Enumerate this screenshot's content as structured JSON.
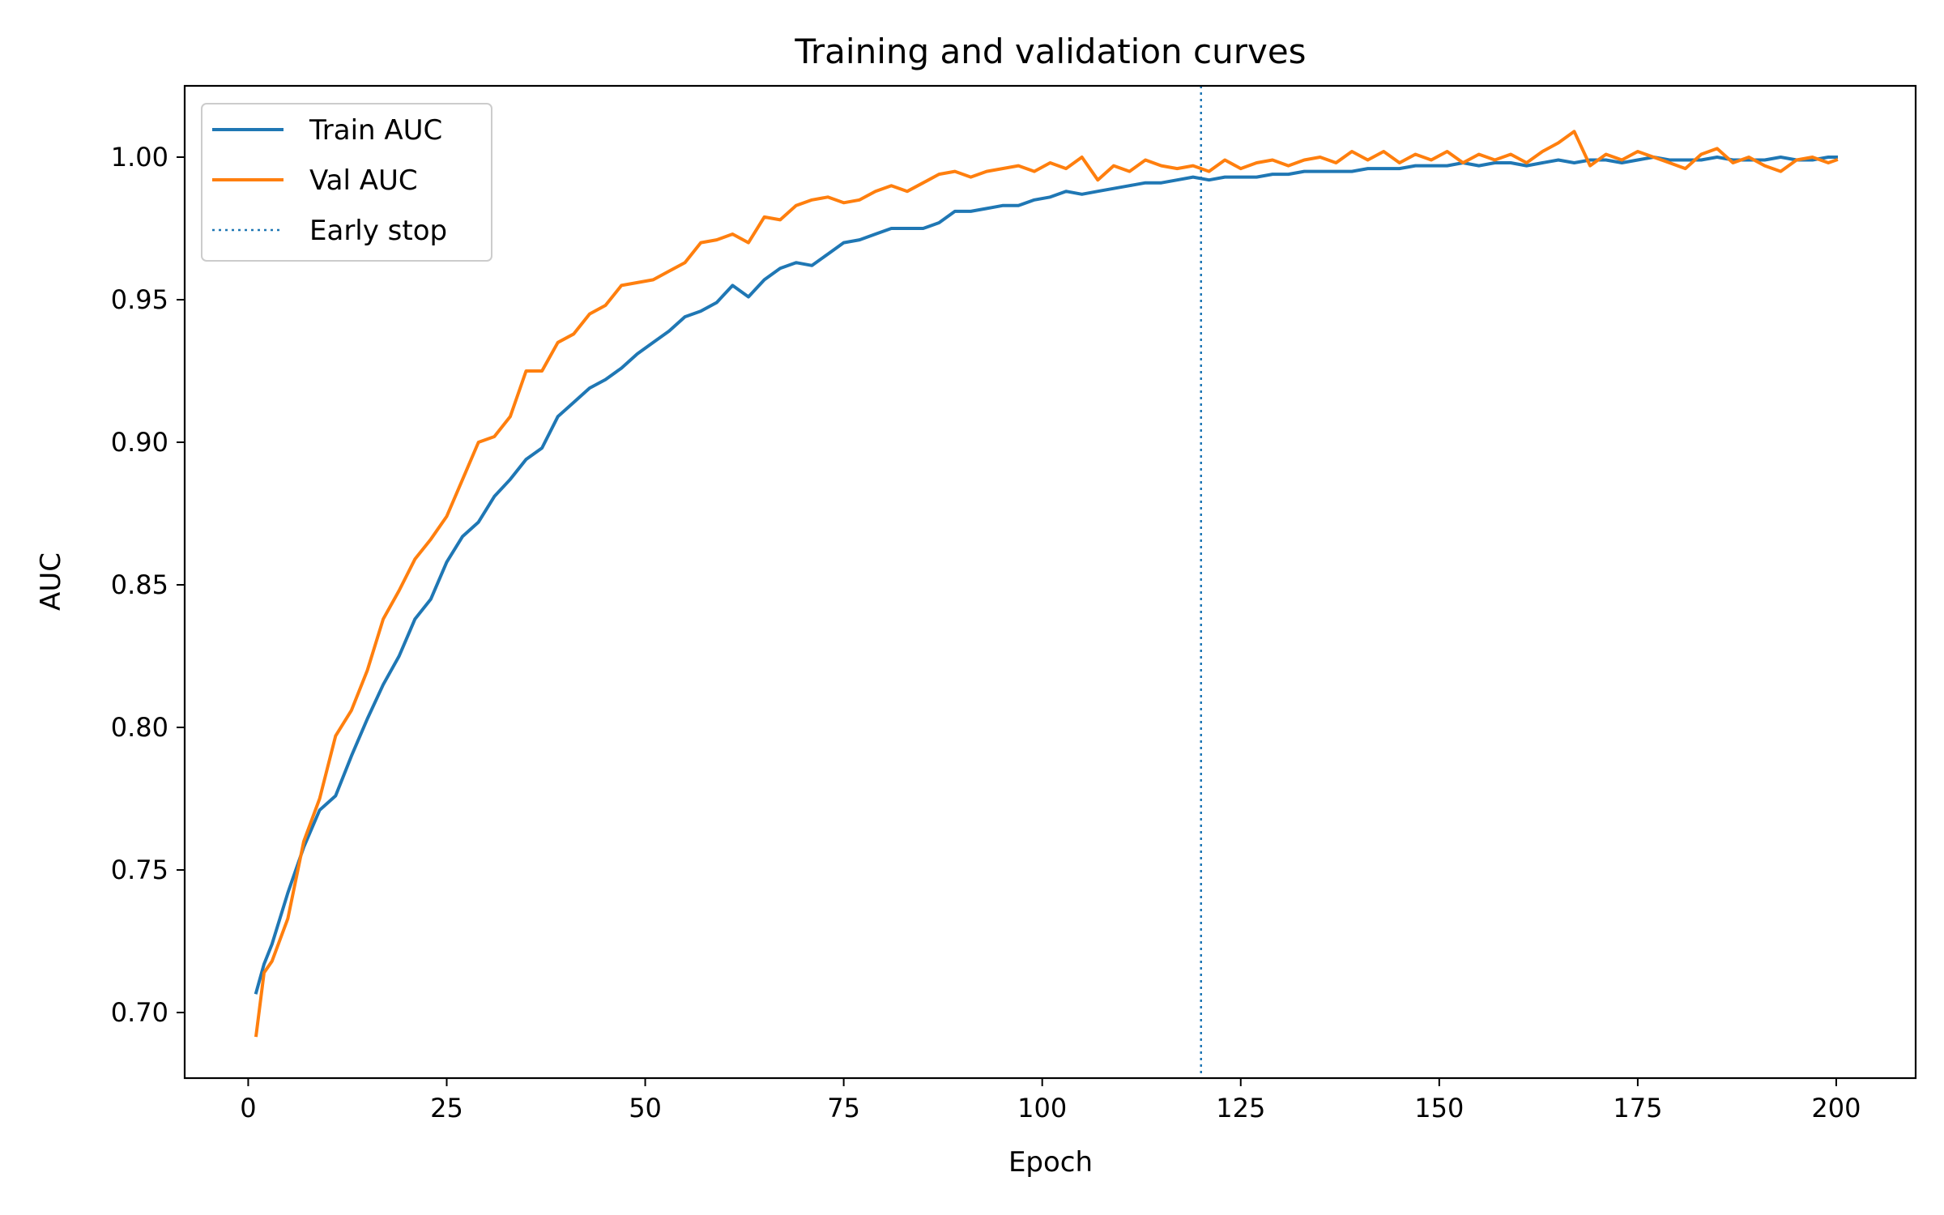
{
  "chart_data": {
    "type": "line",
    "title": "Training and validation curves",
    "xlabel": "Epoch",
    "ylabel": "AUC",
    "xlim": [
      -8,
      210
    ],
    "ylim": [
      0.677,
      1.025
    ],
    "xticks": [
      0,
      25,
      50,
      75,
      100,
      125,
      150,
      175,
      200
    ],
    "xtick_labels": [
      "0",
      "25",
      "50",
      "75",
      "100",
      "125",
      "150",
      "175",
      "200"
    ],
    "yticks": [
      0.7,
      0.75,
      0.8,
      0.85,
      0.9,
      0.95,
      1.0
    ],
    "ytick_labels": [
      "0.70",
      "0.75",
      "0.80",
      "0.85",
      "0.90",
      "0.95",
      "1.00"
    ],
    "grid": false,
    "legend_position": "top-left",
    "series": [
      {
        "name": "Train AUC",
        "color": "#1f77b4",
        "style": "solid",
        "points": [
          [
            1,
            0.707
          ],
          [
            2,
            0.717
          ],
          [
            3,
            0.724
          ],
          [
            5,
            0.742
          ],
          [
            7,
            0.758
          ],
          [
            9,
            0.771
          ],
          [
            11,
            0.776
          ],
          [
            13,
            0.79
          ],
          [
            15,
            0.803
          ],
          [
            17,
            0.815
          ],
          [
            19,
            0.825
          ],
          [
            21,
            0.838
          ],
          [
            23,
            0.845
          ],
          [
            25,
            0.858
          ],
          [
            27,
            0.867
          ],
          [
            29,
            0.872
          ],
          [
            31,
            0.881
          ],
          [
            33,
            0.887
          ],
          [
            35,
            0.894
          ],
          [
            37,
            0.898
          ],
          [
            39,
            0.909
          ],
          [
            41,
            0.914
          ],
          [
            43,
            0.919
          ],
          [
            45,
            0.922
          ],
          [
            47,
            0.926
          ],
          [
            49,
            0.931
          ],
          [
            51,
            0.935
          ],
          [
            53,
            0.939
          ],
          [
            55,
            0.944
          ],
          [
            57,
            0.946
          ],
          [
            59,
            0.949
          ],
          [
            61,
            0.955
          ],
          [
            63,
            0.951
          ],
          [
            65,
            0.957
          ],
          [
            67,
            0.961
          ],
          [
            69,
            0.963
          ],
          [
            71,
            0.962
          ],
          [
            73,
            0.966
          ],
          [
            75,
            0.97
          ],
          [
            77,
            0.971
          ],
          [
            79,
            0.973
          ],
          [
            81,
            0.975
          ],
          [
            83,
            0.975
          ],
          [
            85,
            0.975
          ],
          [
            87,
            0.977
          ],
          [
            89,
            0.981
          ],
          [
            91,
            0.981
          ],
          [
            93,
            0.982
          ],
          [
            95,
            0.983
          ],
          [
            97,
            0.983
          ],
          [
            99,
            0.985
          ],
          [
            101,
            0.986
          ],
          [
            103,
            0.988
          ],
          [
            105,
            0.987
          ],
          [
            107,
            0.988
          ],
          [
            109,
            0.989
          ],
          [
            111,
            0.99
          ],
          [
            113,
            0.991
          ],
          [
            115,
            0.991
          ],
          [
            117,
            0.992
          ],
          [
            119,
            0.993
          ],
          [
            121,
            0.992
          ],
          [
            123,
            0.993
          ],
          [
            125,
            0.993
          ],
          [
            127,
            0.993
          ],
          [
            129,
            0.994
          ],
          [
            131,
            0.994
          ],
          [
            133,
            0.995
          ],
          [
            135,
            0.995
          ],
          [
            137,
            0.995
          ],
          [
            139,
            0.995
          ],
          [
            141,
            0.996
          ],
          [
            143,
            0.996
          ],
          [
            145,
            0.996
          ],
          [
            147,
            0.997
          ],
          [
            149,
            0.997
          ],
          [
            151,
            0.997
          ],
          [
            153,
            0.998
          ],
          [
            155,
            0.997
          ],
          [
            157,
            0.998
          ],
          [
            159,
            0.998
          ],
          [
            161,
            0.997
          ],
          [
            163,
            0.998
          ],
          [
            165,
            0.999
          ],
          [
            167,
            0.998
          ],
          [
            169,
            0.999
          ],
          [
            171,
            0.999
          ],
          [
            173,
            0.998
          ],
          [
            175,
            0.999
          ],
          [
            177,
            1.0
          ],
          [
            179,
            0.999
          ],
          [
            181,
            0.999
          ],
          [
            183,
            0.999
          ],
          [
            185,
            1.0
          ],
          [
            187,
            0.999
          ],
          [
            189,
            0.999
          ],
          [
            191,
            0.999
          ],
          [
            193,
            1.0
          ],
          [
            195,
            0.999
          ],
          [
            197,
            0.999
          ],
          [
            199,
            1.0
          ],
          [
            200,
            1.0
          ]
        ]
      },
      {
        "name": "Val AUC",
        "color": "#ff7f0e",
        "style": "solid",
        "points": [
          [
            1,
            0.692
          ],
          [
            2,
            0.714
          ],
          [
            3,
            0.718
          ],
          [
            5,
            0.733
          ],
          [
            7,
            0.76
          ],
          [
            9,
            0.775
          ],
          [
            11,
            0.797
          ],
          [
            13,
            0.806
          ],
          [
            15,
            0.82
          ],
          [
            17,
            0.838
          ],
          [
            19,
            0.848
          ],
          [
            21,
            0.859
          ],
          [
            23,
            0.866
          ],
          [
            25,
            0.874
          ],
          [
            27,
            0.887
          ],
          [
            29,
            0.9
          ],
          [
            31,
            0.902
          ],
          [
            33,
            0.909
          ],
          [
            35,
            0.925
          ],
          [
            37,
            0.925
          ],
          [
            39,
            0.935
          ],
          [
            41,
            0.938
          ],
          [
            43,
            0.945
          ],
          [
            45,
            0.948
          ],
          [
            47,
            0.955
          ],
          [
            49,
            0.956
          ],
          [
            51,
            0.957
          ],
          [
            53,
            0.96
          ],
          [
            55,
            0.963
          ],
          [
            57,
            0.97
          ],
          [
            59,
            0.971
          ],
          [
            61,
            0.973
          ],
          [
            63,
            0.97
          ],
          [
            65,
            0.979
          ],
          [
            67,
            0.978
          ],
          [
            69,
            0.983
          ],
          [
            71,
            0.985
          ],
          [
            73,
            0.986
          ],
          [
            75,
            0.984
          ],
          [
            77,
            0.985
          ],
          [
            79,
            0.988
          ],
          [
            81,
            0.99
          ],
          [
            83,
            0.988
          ],
          [
            85,
            0.991
          ],
          [
            87,
            0.994
          ],
          [
            89,
            0.995
          ],
          [
            91,
            0.993
          ],
          [
            93,
            0.995
          ],
          [
            95,
            0.996
          ],
          [
            97,
            0.997
          ],
          [
            99,
            0.995
          ],
          [
            101,
            0.998
          ],
          [
            103,
            0.996
          ],
          [
            105,
            1.0
          ],
          [
            107,
            0.992
          ],
          [
            109,
            0.997
          ],
          [
            111,
            0.995
          ],
          [
            113,
            0.999
          ],
          [
            115,
            0.997
          ],
          [
            117,
            0.996
          ],
          [
            119,
            0.997
          ],
          [
            121,
            0.995
          ],
          [
            123,
            0.999
          ],
          [
            125,
            0.996
          ],
          [
            127,
            0.998
          ],
          [
            129,
            0.999
          ],
          [
            131,
            0.997
          ],
          [
            133,
            0.999
          ],
          [
            135,
            1.0
          ],
          [
            137,
            0.998
          ],
          [
            139,
            1.002
          ],
          [
            141,
            0.999
          ],
          [
            143,
            1.002
          ],
          [
            145,
            0.998
          ],
          [
            147,
            1.001
          ],
          [
            149,
            0.999
          ],
          [
            151,
            1.002
          ],
          [
            153,
            0.998
          ],
          [
            155,
            1.001
          ],
          [
            157,
            0.999
          ],
          [
            159,
            1.001
          ],
          [
            161,
            0.998
          ],
          [
            163,
            1.002
          ],
          [
            165,
            1.005
          ],
          [
            167,
            1.009
          ],
          [
            169,
            0.997
          ],
          [
            171,
            1.001
          ],
          [
            173,
            0.999
          ],
          [
            175,
            1.002
          ],
          [
            177,
            1.0
          ],
          [
            179,
            0.998
          ],
          [
            181,
            0.996
          ],
          [
            183,
            1.001
          ],
          [
            185,
            1.003
          ],
          [
            187,
            0.998
          ],
          [
            189,
            1.0
          ],
          [
            191,
            0.997
          ],
          [
            193,
            0.995
          ],
          [
            195,
            0.999
          ],
          [
            197,
            1.0
          ],
          [
            199,
            0.998
          ],
          [
            200,
            0.999
          ]
        ]
      }
    ],
    "reference_lines": [
      {
        "name": "Early stop",
        "orientation": "vertical",
        "x": 120,
        "color": "#1f77b4",
        "style": "dotted"
      }
    ]
  }
}
